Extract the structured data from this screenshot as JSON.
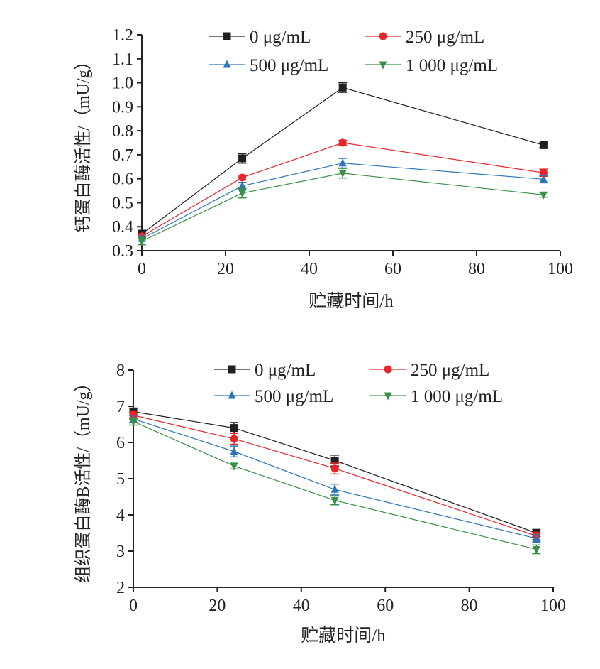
{
  "chart_data": [
    {
      "type": "line",
      "title": "",
      "xlabel": "贮藏时间/h",
      "ylabel": "钙蛋白酶活性/（mU/g）",
      "xlim": [
        0,
        100
      ],
      "ylim": [
        0.3,
        1.2
      ],
      "xticks": [
        0,
        20,
        40,
        60,
        80,
        100
      ],
      "yticks": [
        "0.3",
        "0.4",
        "0.5",
        "0.6",
        "0.7",
        "0.8",
        "0.9",
        "1.0",
        "1.1",
        "1.2"
      ],
      "x": [
        0,
        24,
        48,
        96
      ],
      "legend_position": "top",
      "series": [
        {
          "name": "0 μg/mL",
          "color": "#231f20",
          "marker": "square",
          "values": [
            0.37,
            0.685,
            0.98,
            0.74
          ],
          "errors": [
            0.015,
            0.02,
            0.02,
            0.01
          ]
        },
        {
          "name": "250 μg/mL",
          "color": "#e8262a",
          "marker": "circle",
          "values": [
            0.36,
            0.605,
            0.75,
            0.625
          ],
          "errors": [
            0.01,
            0.01,
            0.01,
            0.015
          ]
        },
        {
          "name": "500 μg/mL",
          "color": "#2e75b6",
          "marker": "triangle-up",
          "values": [
            0.35,
            0.57,
            0.665,
            0.598
          ],
          "errors": [
            0.01,
            0.015,
            0.02,
            0.015
          ]
        },
        {
          "name": "1 000 μg/mL",
          "color": "#3a8f47",
          "marker": "triangle-down",
          "values": [
            0.34,
            0.54,
            0.623,
            0.533
          ],
          "errors": [
            0.015,
            0.02,
            0.02,
            0.01
          ]
        }
      ]
    },
    {
      "type": "line",
      "title": "",
      "xlabel": "贮藏时间/h",
      "ylabel": "组织蛋白酶B活性/（mU/g）",
      "xlim": [
        0,
        100
      ],
      "ylim": [
        2,
        8
      ],
      "xticks": [
        0,
        20,
        40,
        60,
        80,
        100
      ],
      "yticks": [
        "2",
        "3",
        "4",
        "5",
        "6",
        "7",
        "8"
      ],
      "x": [
        0,
        24,
        48,
        96
      ],
      "legend_position": "top",
      "series": [
        {
          "name": "0 μg/mL",
          "color": "#231f20",
          "marker": "square",
          "values": [
            6.85,
            6.4,
            5.5,
            3.5
          ],
          "errors": [
            0.1,
            0.15,
            0.15,
            0.1
          ]
        },
        {
          "name": "250 μg/mL",
          "color": "#e8262a",
          "marker": "circle",
          "values": [
            6.75,
            6.1,
            5.28,
            3.42
          ],
          "errors": [
            0.1,
            0.15,
            0.15,
            0.1
          ]
        },
        {
          "name": "500 μg/mL",
          "color": "#2e75b6",
          "marker": "triangle-up",
          "values": [
            6.65,
            5.75,
            4.7,
            3.35
          ],
          "errors": [
            0.1,
            0.15,
            0.15,
            0.1
          ]
        },
        {
          "name": "1 000 μg/mL",
          "color": "#3a8f47",
          "marker": "triangle-down",
          "values": [
            6.58,
            5.35,
            4.4,
            3.05
          ],
          "errors": [
            0.1,
            0.08,
            0.12,
            0.12
          ]
        }
      ]
    }
  ]
}
